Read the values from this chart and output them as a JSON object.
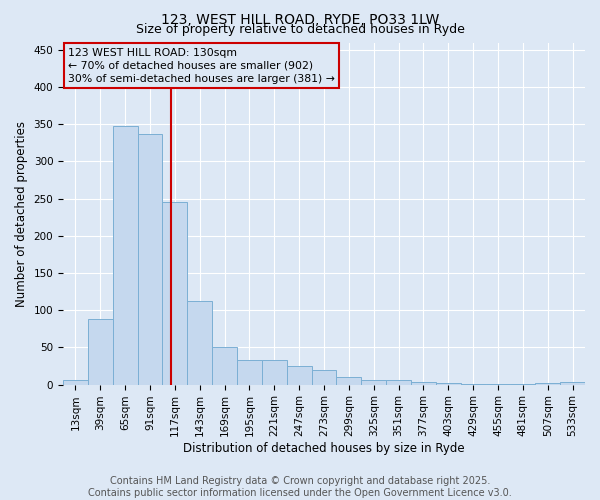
{
  "title": "123, WEST HILL ROAD, RYDE, PO33 1LW",
  "subtitle": "Size of property relative to detached houses in Ryde",
  "xlabel": "Distribution of detached houses by size in Ryde",
  "ylabel": "Number of detached properties",
  "categories": [
    "13sqm",
    "39sqm",
    "65sqm",
    "91sqm",
    "117sqm",
    "143sqm",
    "169sqm",
    "195sqm",
    "221sqm",
    "247sqm",
    "273sqm",
    "299sqm",
    "325sqm",
    "351sqm",
    "377sqm",
    "403sqm",
    "429sqm",
    "455sqm",
    "481sqm",
    "507sqm",
    "533sqm"
  ],
  "values": [
    6,
    88,
    348,
    337,
    245,
    112,
    50,
    33,
    33,
    25,
    20,
    10,
    6,
    6,
    4,
    2,
    1,
    1,
    1,
    2,
    3
  ],
  "bar_color": "#c5d8ee",
  "bar_edge_color": "#7bafd4",
  "background_color": "#dde8f5",
  "grid_color": "#ffffff",
  "annotation_box_color": "#cc0000",
  "annotation_text": "123 WEST HILL ROAD: 130sqm\n← 70% of detached houses are smaller (902)\n30% of semi-detached houses are larger (381) →",
  "property_line_x": 3.85,
  "ylim": [
    0,
    460
  ],
  "yticks": [
    0,
    50,
    100,
    150,
    200,
    250,
    300,
    350,
    400,
    450
  ],
  "footer_text": "Contains HM Land Registry data © Crown copyright and database right 2025.\nContains public sector information licensed under the Open Government Licence v3.0.",
  "title_fontsize": 10,
  "subtitle_fontsize": 9,
  "axis_fontsize": 8.5,
  "tick_fontsize": 7.5,
  "annotation_fontsize": 7.8,
  "footer_fontsize": 7
}
